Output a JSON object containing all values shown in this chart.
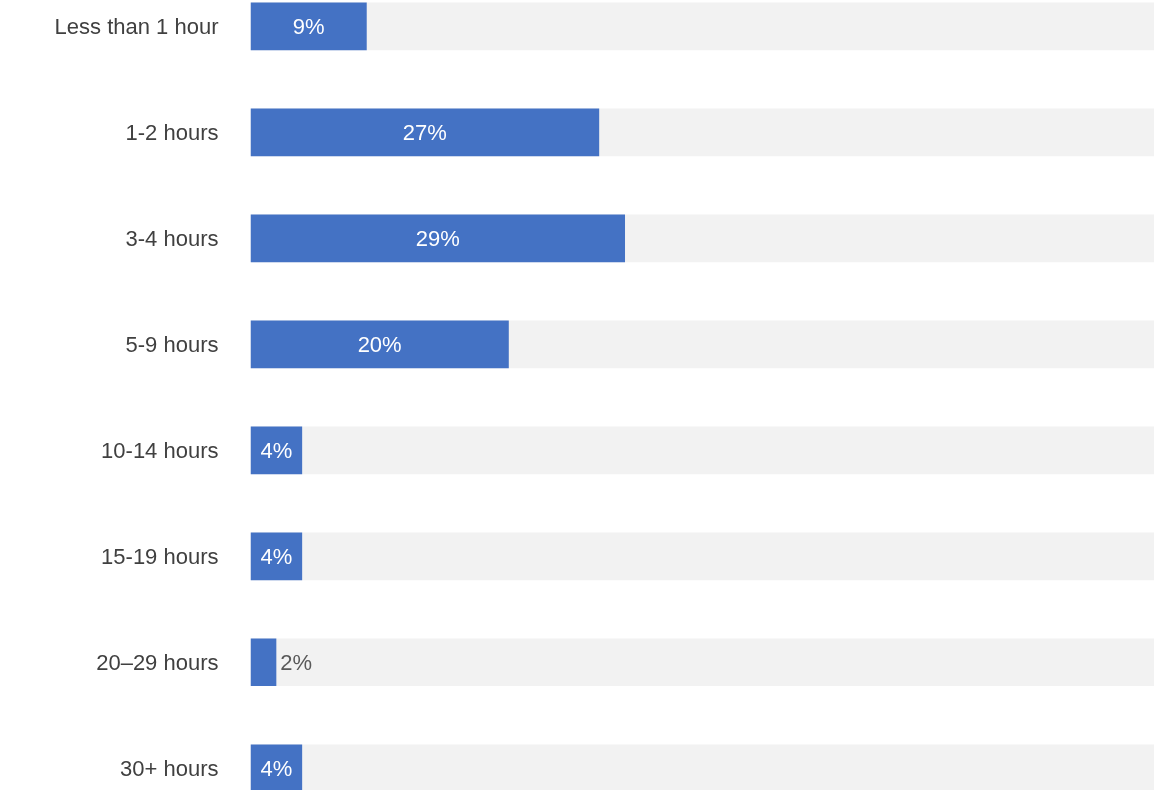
{
  "chart_data": {
    "type": "bar",
    "orientation": "horizontal",
    "categories": [
      "Less than 1 hour",
      "1-2 hours",
      "3-4 hours",
      "5-9 hours",
      "10-14 hours",
      "15-19 hours",
      "20–29 hours",
      "30+ hours"
    ],
    "values": [
      9,
      27,
      29,
      20,
      4,
      4,
      2,
      4
    ],
    "value_labels": [
      "9%",
      "27%",
      "29%",
      "20%",
      "4%",
      "4%",
      "2%",
      "4%"
    ],
    "color": "#4472c4",
    "xlim": [
      0,
      70
    ],
    "tick_labels": "y"
  }
}
